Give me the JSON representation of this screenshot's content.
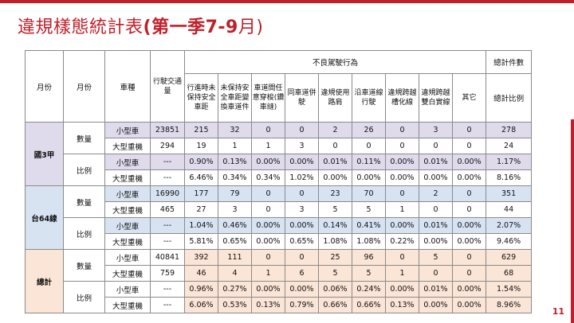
{
  "title": {
    "prefix": "違規樣態統計表",
    "bold": "(第一季7-9",
    "suffix": "月)"
  },
  "page_number": "11",
  "headers": {
    "month1": "月份",
    "month2": "月份",
    "vehicle": "車種",
    "traffic": "行駛交通量",
    "bad_behavior": "不良駕駛行為",
    "total_count": "總計件數",
    "total_ratio": "總計比例",
    "behaviors": [
      "行進時未保持安全車距",
      "未保持安全車距變換車道件",
      "車道間任意穿梭(鑽車縫)",
      "同車道併駛",
      "違規使用路肩",
      "沿車道線行駛",
      "違規跨越槽化線",
      "違規跨越雙白實線",
      "其它"
    ]
  },
  "groups": [
    {
      "name": "國3甲",
      "rows": [
        {
          "type": "數量",
          "vehicle": "小型車",
          "traffic": "23851",
          "vals": [
            "215",
            "32",
            "0",
            "0",
            "2",
            "26",
            "0",
            "3",
            "0"
          ],
          "total": "278"
        },
        {
          "vehicle": "大型重機",
          "traffic": "294",
          "vals": [
            "19",
            "1",
            "1",
            "3",
            "0",
            "0",
            "0",
            "0",
            "0"
          ],
          "total": "24"
        },
        {
          "type": "比例",
          "vehicle": "小型車",
          "traffic": "---",
          "vals": [
            "0.90%",
            "0.13%",
            "0.00%",
            "0.00%",
            "0.01%",
            "0.11%",
            "0.00%",
            "0.01%",
            "0.00%"
          ],
          "total": "1.17%"
        },
        {
          "vehicle": "大型重機",
          "traffic": "---",
          "vals": [
            "6.46%",
            "0.34%",
            "0.34%",
            "1.02%",
            "0.00%",
            "0.00%",
            "0.00%",
            "0.00%",
            "0.00%"
          ],
          "total": "8.16%"
        }
      ]
    },
    {
      "name": "台64線",
      "rows": [
        {
          "type": "數量",
          "vehicle": "小型車",
          "traffic": "16990",
          "vals": [
            "177",
            "79",
            "0",
            "0",
            "23",
            "70",
            "0",
            "2",
            "0"
          ],
          "total": "351"
        },
        {
          "vehicle": "大型重機",
          "traffic": "465",
          "vals": [
            "27",
            "3",
            "0",
            "3",
            "5",
            "5",
            "1",
            "0",
            "0"
          ],
          "total": "44"
        },
        {
          "type": "比例",
          "vehicle": "小型車",
          "traffic": "---",
          "vals": [
            "1.04%",
            "0.46%",
            "0.00%",
            "0.00%",
            "0.14%",
            "0.41%",
            "0.00%",
            "0.01%",
            "0.00%"
          ],
          "total": "2.07%"
        },
        {
          "vehicle": "大型重機",
          "traffic": "---",
          "vals": [
            "5.81%",
            "0.65%",
            "0.00%",
            "0.65%",
            "1.08%",
            "1.08%",
            "0.22%",
            "0.00%",
            "0.00%"
          ],
          "total": "9.46%"
        }
      ]
    },
    {
      "name": "總計",
      "rows": [
        {
          "type": "數量",
          "vehicle": "小型車",
          "traffic": "40841",
          "vals": [
            "392",
            "111",
            "0",
            "0",
            "25",
            "96",
            "0",
            "5",
            "0"
          ],
          "total": "629"
        },
        {
          "vehicle": "大型重機",
          "traffic": "759",
          "vals": [
            "46",
            "4",
            "1",
            "6",
            "5",
            "5",
            "1",
            "0",
            "0"
          ],
          "total": "68"
        },
        {
          "type": "比例",
          "vehicle": "小型車",
          "traffic": "---",
          "vals": [
            "0.96%",
            "0.27%",
            "0.00%",
            "0.00%",
            "0.06%",
            "0.24%",
            "0.00%",
            "0.01%",
            "0.00%"
          ],
          "total": "1.54%"
        },
        {
          "vehicle": "大型重機",
          "traffic": "---",
          "vals": [
            "6.06%",
            "0.53%",
            "0.13%",
            "0.79%",
            "0.66%",
            "0.66%",
            "0.13%",
            "0.00%",
            "0.00%"
          ],
          "total": "8.96%"
        }
      ]
    }
  ],
  "colors": {
    "accent": "#c0202a",
    "group1_fill": "#dfdbed",
    "group2_fill": "#d7e3f1",
    "group3_fill": "#fbe5d6"
  }
}
